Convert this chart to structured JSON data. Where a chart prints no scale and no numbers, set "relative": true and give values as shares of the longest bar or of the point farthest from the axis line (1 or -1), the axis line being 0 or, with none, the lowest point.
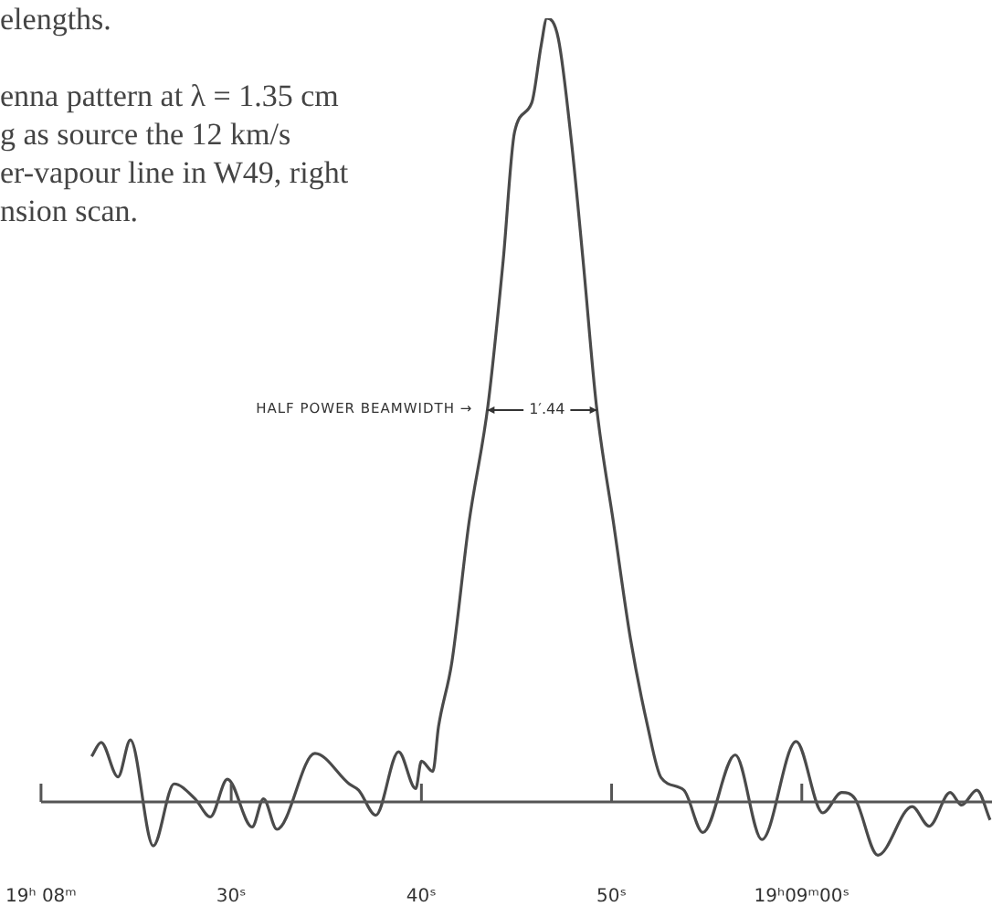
{
  "chart_data": {
    "type": "line",
    "relative": true,
    "x": [
      22.66,
      23.16,
      24.05,
      24.7,
      25.9,
      27.0,
      28.1,
      28.9,
      29.8,
      31.1,
      31.7,
      32.4,
      34.4,
      36.2,
      36.7,
      37.6,
      38.8,
      39.7,
      40.0,
      40.6,
      40.9,
      41.6,
      42.5,
      43.5,
      44.3,
      44.9,
      45.8,
      46.3,
      46.6,
      47.2,
      47.9,
      48.5,
      49.2,
      50.1,
      51.0,
      51.9,
      52.6,
      53.8,
      54.8,
      56.5,
      57.9,
      59.7,
      61.1,
      62.1,
      62.8,
      64.0,
      65.8,
      66.7,
      67.8,
      68.4,
      69.2,
      69.9
    ],
    "series": [
      {
        "color": "#4a4a4a",
        "values": [
          0.058,
          0.076,
          0.032,
          0.079,
          -0.056,
          0.023,
          0.004,
          -0.019,
          0.029,
          -0.032,
          0.004,
          -0.035,
          0.062,
          0.023,
          0.015,
          -0.017,
          0.064,
          0.017,
          0.052,
          0.039,
          0.096,
          0.178,
          0.356,
          0.506,
          0.691,
          0.855,
          0.892,
          0.966,
          1,
          0.974,
          0.84,
          0.691,
          0.506,
          0.356,
          0.207,
          0.096,
          0.031,
          0.015,
          -0.039,
          0.06,
          -0.048,
          0.077,
          -0.014,
          0.012,
          0.004,
          -0.068,
          -0.006,
          -0.031,
          0.012,
          -0.004,
          0.015,
          -0.023
        ]
      }
    ],
    "xlim": [
      20,
      70
    ],
    "xticks": [
      {
        "value": 20,
        "label": "19ʰ 08ᵐ"
      },
      {
        "value": 30,
        "label": "30ˢ"
      },
      {
        "value": 40,
        "label": "40ˢ"
      },
      {
        "value": 50,
        "label": "50ˢ"
      },
      {
        "value": 60,
        "label": "19ʰ09ᵐ00ˢ"
      }
    ],
    "marker": "none",
    "annotations": [
      "elengths.",
      "enna pattern at λ = 1.35 cm",
      "g as source the 12 km/s",
      "er-vapour line in W49, right",
      "nsion scan.",
      "HALF POWER BEAMWIDTH →",
      "1′.44"
    ]
  }
}
